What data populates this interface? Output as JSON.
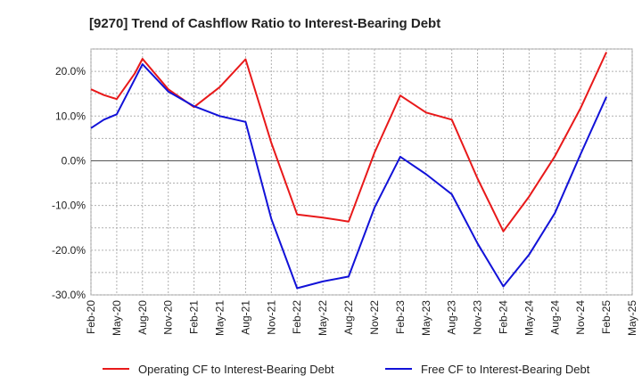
{
  "chart_data": {
    "type": "line",
    "title": "[9270]  Trend of Cashflow Ratio to Interest-Bearing Debt",
    "xlabel": "",
    "ylabel": "",
    "ylim": [
      -30,
      25
    ],
    "yticks": [
      20,
      10,
      0,
      -10,
      -20,
      -30
    ],
    "ytick_labels": [
      "20.0%",
      "10.0%",
      "0.0%",
      "-10.0%",
      "-20.0%",
      "-30.0%"
    ],
    "x_tick_labels": [
      "Feb-20",
      "May-20",
      "Aug-20",
      "Nov-20",
      "Feb-21",
      "May-21",
      "Aug-21",
      "Nov-21",
      "Feb-22",
      "May-22",
      "Aug-22",
      "Nov-22",
      "Feb-23",
      "May-23",
      "Aug-23",
      "Nov-23",
      "Feb-24",
      "May-24",
      "Aug-24",
      "Nov-24",
      "Feb-25",
      "May-25"
    ],
    "grid": true,
    "legend_position": "bottom",
    "series": [
      {
        "name": "Operating CF to Interest-Bearing Debt",
        "color": "#e8191a",
        "points": [
          [
            0,
            16.0
          ],
          [
            0.5,
            14.7
          ],
          [
            1,
            13.8
          ],
          [
            1.7,
            19.5
          ],
          [
            2,
            22.8
          ],
          [
            3,
            16.0
          ],
          [
            4,
            12.0
          ],
          [
            5,
            16.5
          ],
          [
            6,
            22.7
          ],
          [
            7,
            4.0
          ],
          [
            8,
            -12.0
          ],
          [
            9,
            -12.7
          ],
          [
            10,
            -13.6
          ],
          [
            11,
            1.8
          ],
          [
            12,
            14.6
          ],
          [
            13,
            10.8
          ],
          [
            14,
            9.2
          ],
          [
            15,
            -4.0
          ],
          [
            16,
            -15.8
          ],
          [
            17,
            -8.0
          ],
          [
            18,
            1.0
          ],
          [
            19,
            11.8
          ],
          [
            20,
            24.3
          ]
        ]
      },
      {
        "name": "Free CF to Interest-Bearing Debt",
        "color": "#1212d8",
        "points": [
          [
            0,
            7.3
          ],
          [
            0.5,
            9.2
          ],
          [
            1,
            10.4
          ],
          [
            2,
            21.6
          ],
          [
            3,
            15.5
          ],
          [
            4,
            12.2
          ],
          [
            5,
            10.0
          ],
          [
            6,
            8.7
          ],
          [
            7,
            -13.0
          ],
          [
            8,
            -28.5
          ],
          [
            9,
            -27.0
          ],
          [
            10,
            -25.9
          ],
          [
            11,
            -10.5
          ],
          [
            12,
            0.9
          ],
          [
            13,
            -3.0
          ],
          [
            14,
            -7.5
          ],
          [
            15,
            -18.5
          ],
          [
            16,
            -28.1
          ],
          [
            17,
            -21.0
          ],
          [
            18,
            -11.7
          ],
          [
            19,
            1.5
          ],
          [
            20,
            14.3
          ]
        ]
      }
    ]
  }
}
